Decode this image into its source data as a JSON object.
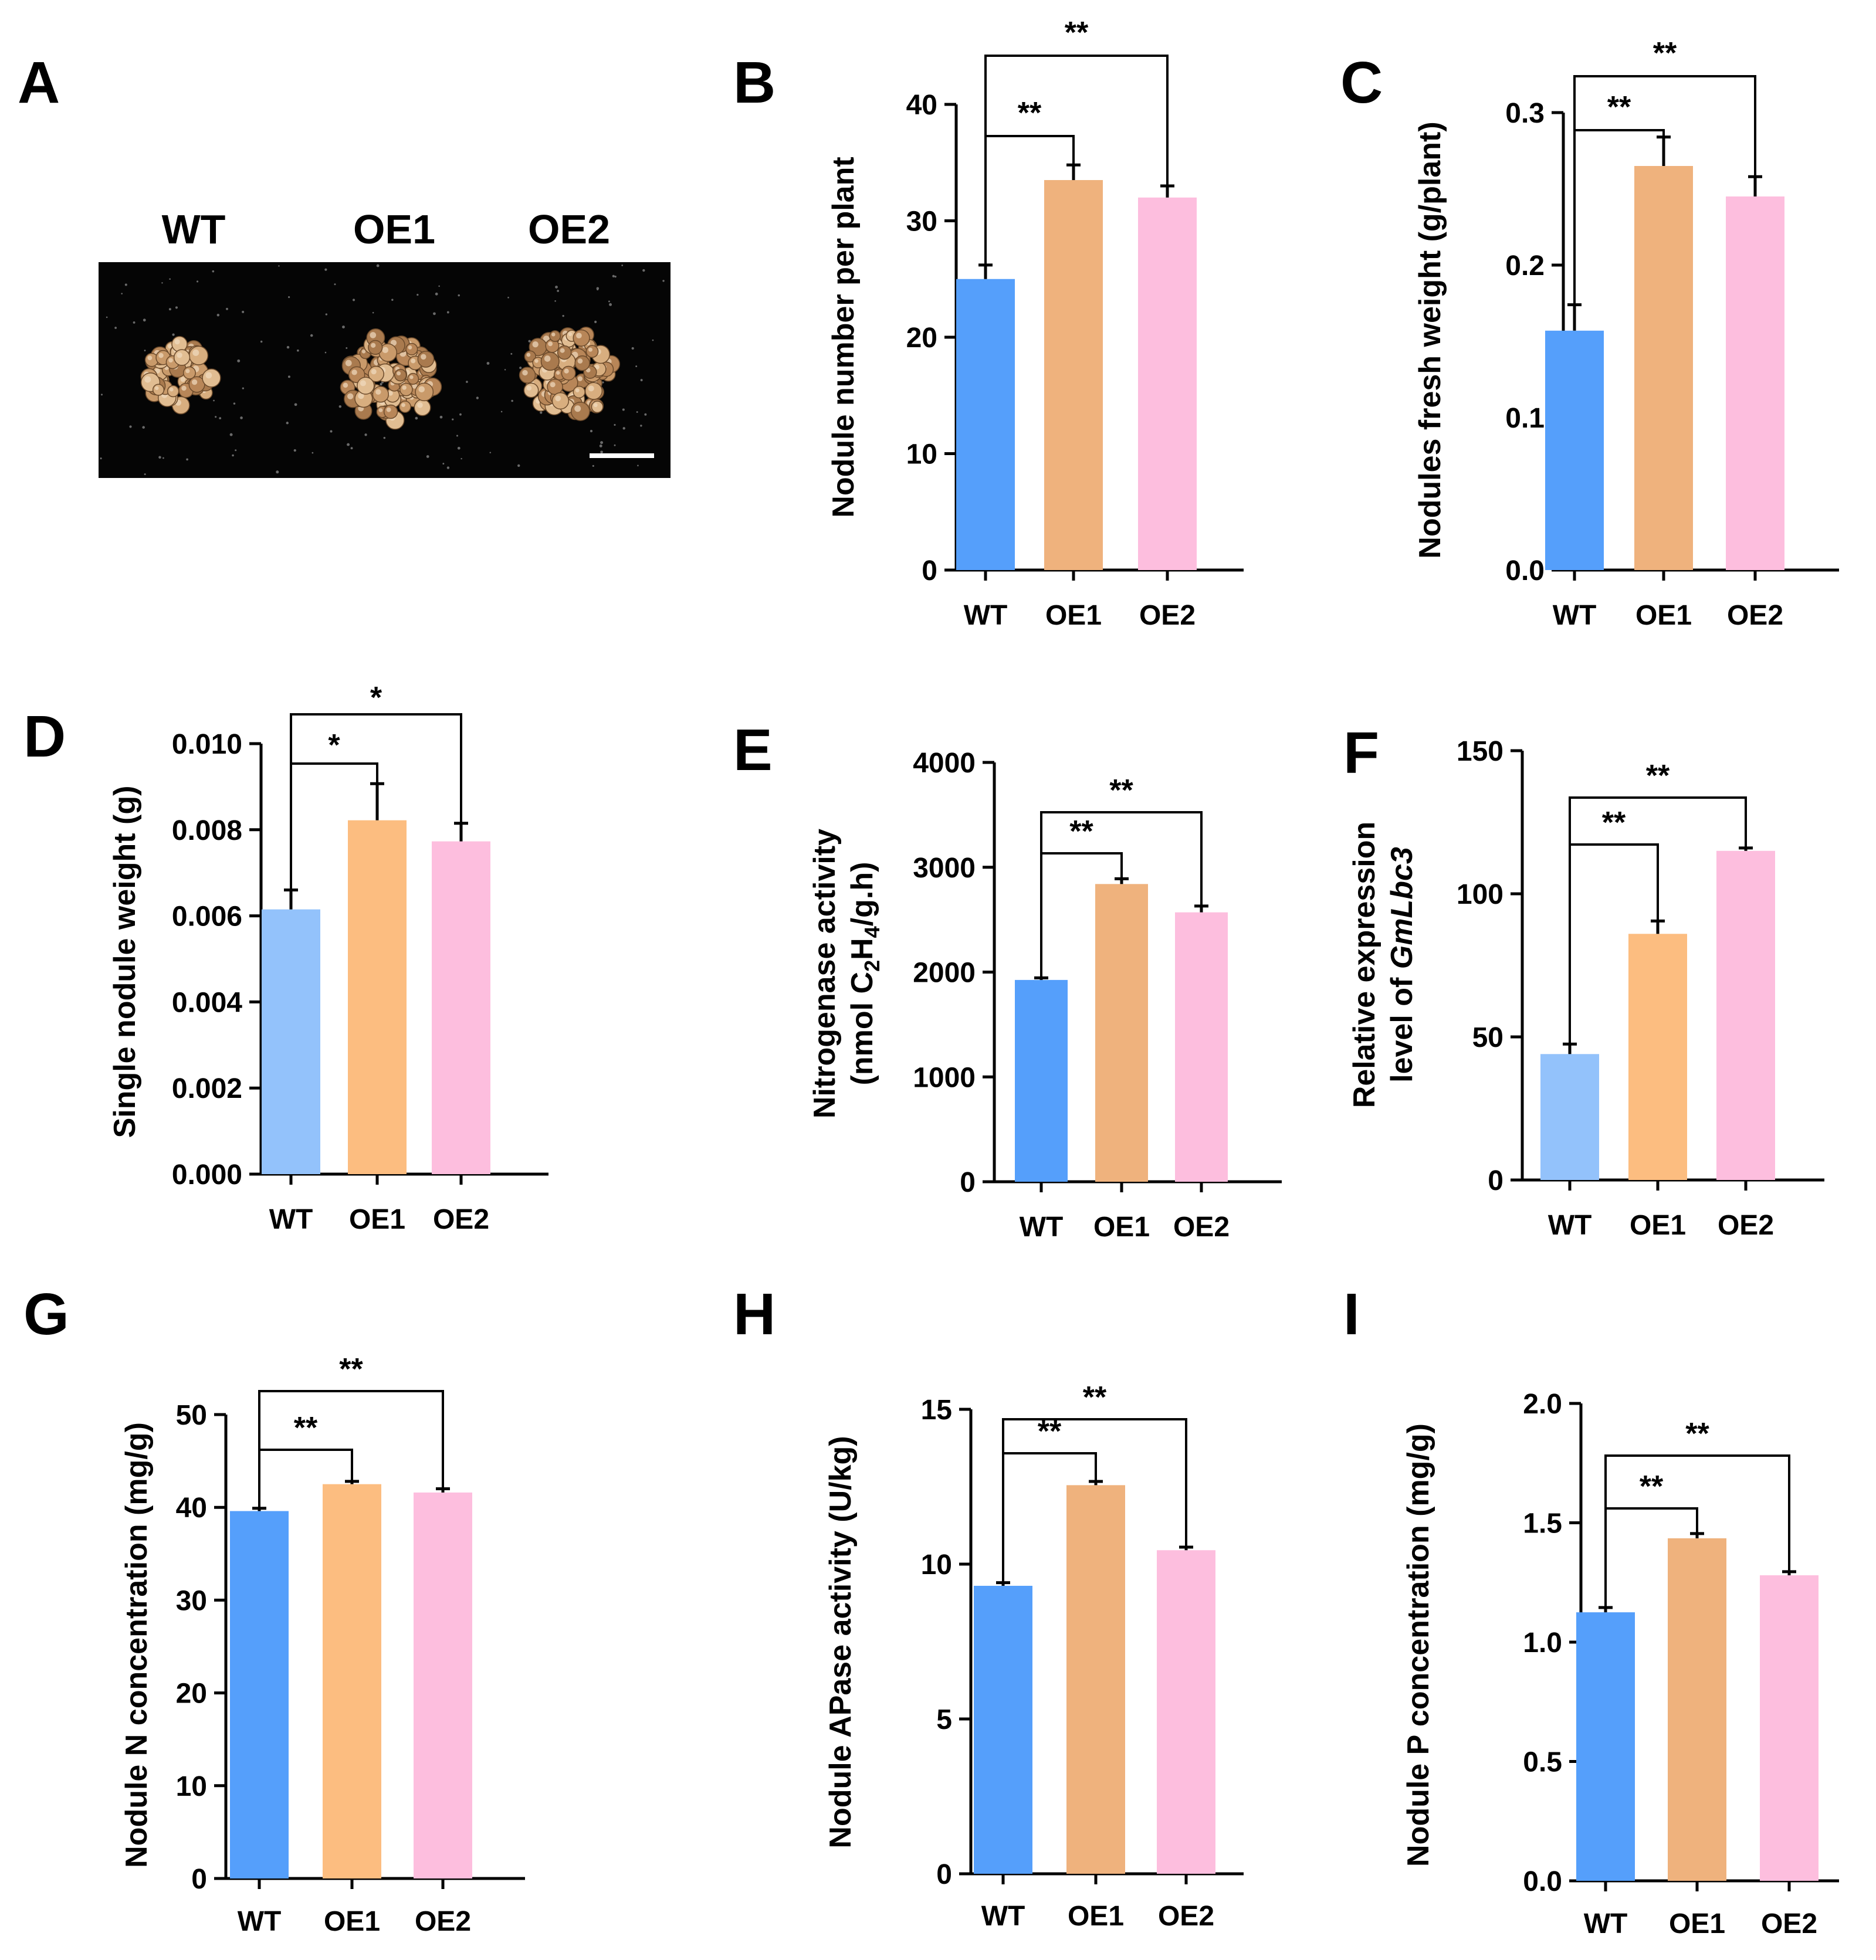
{
  "photo": {
    "letter": "A",
    "labels": [
      "WT",
      "OE1",
      "OE2"
    ]
  },
  "colors": {
    "wt_dark": "#559ffb",
    "wt_light": "#93c2fb",
    "oe1_dark": "#efb27d",
    "oe1_light": "#fcbd80",
    "oe2": "#fdbede"
  },
  "chart_data": [
    {
      "letter": "B",
      "type": "bar",
      "categories": [
        "WT",
        "OE1",
        "OE2"
      ],
      "values": [
        25,
        33.5,
        32
      ],
      "errors": [
        1.2,
        1.3,
        1.0
      ],
      "ylabel": [
        "Nodule number per plant"
      ],
      "ylim": [
        0,
        40
      ],
      "yticks": [
        "0",
        "10",
        "20",
        "30",
        "40"
      ],
      "colors": [
        "#559ffb",
        "#efb27d",
        "#fdbede"
      ],
      "sig": [
        {
          "from": 0,
          "to": 1,
          "text": "**"
        },
        {
          "from": 0,
          "to": 2,
          "text": "**"
        }
      ]
    },
    {
      "letter": "C",
      "type": "bar",
      "categories": [
        "WT",
        "OE1",
        "OE2"
      ],
      "values": [
        0.157,
        0.265,
        0.245
      ],
      "errors": [
        0.017,
        0.019,
        0.013
      ],
      "ylabel": [
        "Nodules  fresh weight (g/plant)"
      ],
      "ylim": [
        0,
        0.3
      ],
      "yticks": [
        "0.0",
        "0.1",
        "0.2",
        "0.3"
      ],
      "colors": [
        "#559ffb",
        "#efb27d",
        "#fdbede"
      ],
      "sig": [
        {
          "from": 0,
          "to": 1,
          "text": "**"
        },
        {
          "from": 0,
          "to": 2,
          "text": "**"
        }
      ]
    },
    {
      "letter": "D",
      "type": "bar",
      "categories": [
        "WT",
        "OE1",
        "OE2"
      ],
      "values": [
        0.00615,
        0.00822,
        0.00773
      ],
      "errors": [
        0.00045,
        0.00085,
        0.00042
      ],
      "ylabel": [
        "Single nodule weight (g)"
      ],
      "ylim": [
        0,
        0.01
      ],
      "yticks": [
        "0.000",
        "0.002",
        "0.004",
        "0.006",
        "0.008",
        "0.010"
      ],
      "colors": [
        "#93c2fb",
        "#fcbd80",
        "#fdbede"
      ],
      "sig": [
        {
          "from": 0,
          "to": 1,
          "text": "*"
        },
        {
          "from": 0,
          "to": 2,
          "text": "*"
        }
      ]
    },
    {
      "letter": "E",
      "type": "bar",
      "categories": [
        "WT",
        "OE1",
        "OE2"
      ],
      "values": [
        1925,
        2840,
        2570
      ],
      "errors": [
        20,
        50,
        60
      ],
      "ylabel": [
        "Nitrogenase activity",
        "(nmol C2H4/g.h)"
      ],
      "ylim": [
        0,
        4000
      ],
      "yticks": [
        "0",
        "1000",
        "2000",
        "3000",
        "4000"
      ],
      "colors": [
        "#559ffb",
        "#efb27d",
        "#fdbede"
      ],
      "sig": [
        {
          "from": 0,
          "to": 1,
          "text": "**"
        },
        {
          "from": 0,
          "to": 2,
          "text": "**"
        }
      ]
    },
    {
      "letter": "F",
      "type": "bar",
      "categories": [
        "WT",
        "OE1",
        "OE2"
      ],
      "values": [
        44,
        86,
        115
      ],
      "errors": [
        3.5,
        4.5,
        1.0
      ],
      "ylabel": [
        "Relative expression",
        "level of GmLbc3"
      ],
      "ylim": [
        0,
        150
      ],
      "yticks": [
        "0",
        "50",
        "100",
        "150"
      ],
      "colors": [
        "#93c2fb",
        "#fcbd80",
        "#fdbede"
      ],
      "sig": [
        {
          "from": 0,
          "to": 1,
          "text": "**"
        },
        {
          "from": 0,
          "to": 2,
          "text": "**"
        }
      ]
    },
    {
      "letter": "G",
      "type": "bar",
      "categories": [
        "WT",
        "OE1",
        "OE2"
      ],
      "values": [
        39.6,
        42.5,
        41.6
      ],
      "errors": [
        0.3,
        0.3,
        0.4
      ],
      "ylabel": [
        "Nodule N concentration (mg/g)"
      ],
      "ylim": [
        0,
        50
      ],
      "yticks": [
        "0",
        "10",
        "20",
        "30",
        "40",
        "50"
      ],
      "colors": [
        "#559ffb",
        "#fcbd80",
        "#fdbede"
      ],
      "sig": [
        {
          "from": 0,
          "to": 1,
          "text": "**"
        },
        {
          "from": 0,
          "to": 2,
          "text": "**"
        }
      ]
    },
    {
      "letter": "H",
      "type": "bar",
      "categories": [
        "WT",
        "OE1",
        "OE2"
      ],
      "values": [
        9.3,
        12.55,
        10.45
      ],
      "errors": [
        0.1,
        0.12,
        0.1
      ],
      "ylabel": [
        "Nodule APase  activity (U/kg)"
      ],
      "ylim": [
        0,
        15
      ],
      "yticks": [
        "0",
        "5",
        "10",
        "15"
      ],
      "colors": [
        "#559ffb",
        "#efb27d",
        "#fdbede"
      ],
      "sig": [
        {
          "from": 0,
          "to": 1,
          "text": "**"
        },
        {
          "from": 0,
          "to": 2,
          "text": "**"
        }
      ]
    },
    {
      "letter": "I",
      "type": "bar",
      "categories": [
        "WT",
        "OE1",
        "OE2"
      ],
      "values": [
        1.125,
        1.435,
        1.28
      ],
      "errors": [
        0.02,
        0.02,
        0.015
      ],
      "ylabel": [
        "Nodule P concentration (mg/g)"
      ],
      "ylim": [
        0,
        2.0
      ],
      "yticks": [
        "0.0",
        "0.5",
        "1.0",
        "1.5",
        "2.0"
      ],
      "colors": [
        "#559ffb",
        "#efb27d",
        "#fdbede"
      ],
      "sig": [
        {
          "from": 0,
          "to": 1,
          "text": "**"
        },
        {
          "from": 0,
          "to": 2,
          "text": "**"
        }
      ]
    }
  ]
}
